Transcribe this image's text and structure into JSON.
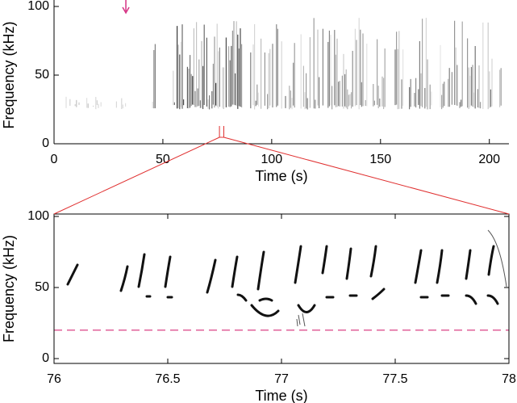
{
  "chart_data": [
    {
      "type": "spectrogram",
      "xlabel": "Time (s)",
      "ylabel": "Frequency (kHz)",
      "xlim": [
        0,
        209
      ],
      "xticks": [
        0,
        50,
        100,
        150,
        200
      ],
      "ylim": [
        0,
        100
      ],
      "yticks": [
        0,
        50,
        100
      ],
      "arrow_x": 33,
      "arrow_color": "#d63384"
    },
    {
      "type": "spectrogram",
      "xlabel": "Time (s)",
      "ylabel": "Frequency (kHz)",
      "xlim": [
        76,
        78
      ],
      "xticks": [
        76,
        76.5,
        77,
        77.5,
        78
      ],
      "ylim": [
        -3.4,
        101.7
      ],
      "yticks": [
        0,
        50,
        100
      ],
      "hline": 20,
      "hline_color": "#e0609a"
    }
  ]
}
